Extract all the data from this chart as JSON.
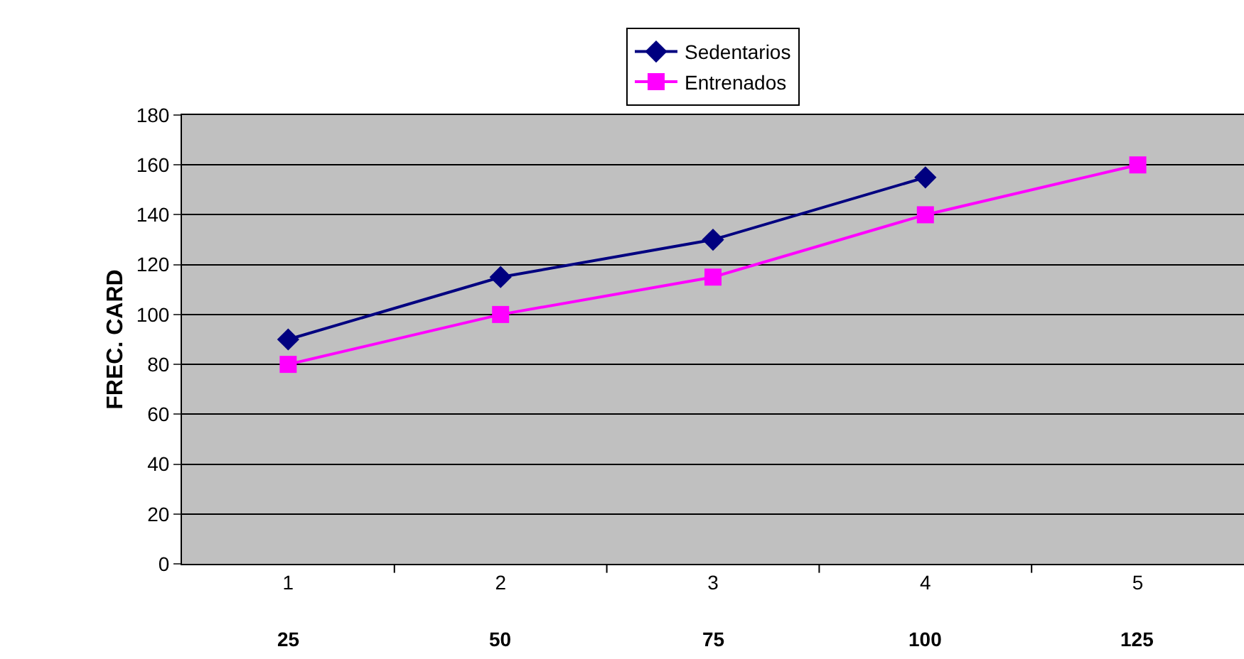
{
  "chart_data": {
    "type": "line",
    "ylabel": "FREC. CARD",
    "categories": [
      "1",
      "2",
      "3",
      "4",
      "5"
    ],
    "series": [
      {
        "name": "Sedentarios",
        "color": "#000080",
        "marker": "diamond",
        "values": [
          90,
          115,
          130,
          155,
          null
        ]
      },
      {
        "name": "Entrenados",
        "color": "#ff00ff",
        "marker": "square",
        "values": [
          80,
          100,
          115,
          140,
          160
        ]
      }
    ],
    "ylim": [
      0,
      180
    ],
    "yticks": [
      0,
      20,
      40,
      60,
      80,
      100,
      120,
      140,
      160,
      180
    ],
    "grid": "y",
    "legend": "top",
    "annotations": [
      "25",
      "50",
      "75",
      "100",
      "125"
    ]
  }
}
